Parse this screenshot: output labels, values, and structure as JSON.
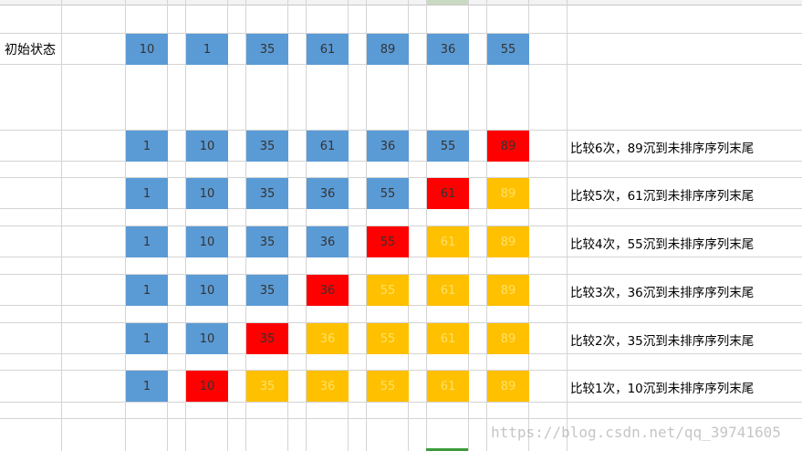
{
  "sheet": {
    "initial_label": "初始状态",
    "initial_values": [
      10,
      1,
      35,
      61,
      89,
      36,
      55
    ],
    "passes": [
      {
        "values": [
          1,
          10,
          35,
          61,
          36,
          55,
          89
        ],
        "states": [
          "unsorted",
          "unsorted",
          "unsorted",
          "unsorted",
          "unsorted",
          "unsorted",
          "sinking"
        ],
        "note": "比较6次，89沉到未排序序列末尾"
      },
      {
        "values": [
          1,
          10,
          35,
          36,
          55,
          61,
          89
        ],
        "states": [
          "unsorted",
          "unsorted",
          "unsorted",
          "unsorted",
          "unsorted",
          "sinking",
          "sorted"
        ],
        "note": "比较5次，61沉到未排序序列末尾"
      },
      {
        "values": [
          1,
          10,
          35,
          36,
          55,
          61,
          89
        ],
        "states": [
          "unsorted",
          "unsorted",
          "unsorted",
          "unsorted",
          "sinking",
          "sorted",
          "sorted"
        ],
        "note": "比较4次，55沉到未排序序列末尾"
      },
      {
        "values": [
          1,
          10,
          35,
          36,
          55,
          61,
          89
        ],
        "states": [
          "unsorted",
          "unsorted",
          "unsorted",
          "sinking",
          "sorted",
          "sorted",
          "sorted"
        ],
        "note": "比较3次，36沉到未排序序列末尾"
      },
      {
        "values": [
          1,
          10,
          35,
          36,
          55,
          61,
          89
        ],
        "states": [
          "unsorted",
          "unsorted",
          "sinking",
          "sorted",
          "sorted",
          "sorted",
          "sorted"
        ],
        "note": "比较2次，35沉到未排序序列末尾"
      },
      {
        "values": [
          1,
          10,
          35,
          36,
          55,
          61,
          89
        ],
        "states": [
          "unsorted",
          "sinking",
          "sorted",
          "sorted",
          "sorted",
          "sorted",
          "sorted"
        ],
        "note": "比较1次，10沉到未排序序列末尾"
      }
    ]
  },
  "colors": {
    "unsorted": "#5b9bd5",
    "sinking": "#ff0000",
    "sorted": "#ffc000",
    "gridline": "#d4d4d4"
  },
  "watermark": "https://blog.csdn.net/qq_39741605"
}
